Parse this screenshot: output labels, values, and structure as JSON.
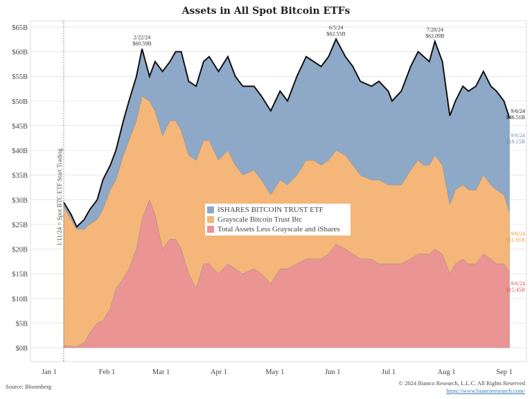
{
  "chart_data": {
    "type": "area",
    "stacked": true,
    "title": "Assets in All Spot Bitcoin ETFs",
    "xlabel": "",
    "ylabel": "",
    "ylim": [
      0,
      65
    ],
    "yticks": [
      "$0B",
      "$5B",
      "$10B",
      "$15B",
      "$20B",
      "$25B",
      "$30B",
      "$35B",
      "$40B",
      "$45B",
      "$50B",
      "$55B",
      "$60B",
      "$65B"
    ],
    "xticks": [
      {
        "date": "2024-01-01",
        "label": "Jan 1"
      },
      {
        "date": "2024-02-01",
        "label": "Feb 1"
      },
      {
        "date": "2024-03-01",
        "label": "Mar 1"
      },
      {
        "date": "2024-04-01",
        "label": "Apr 1"
      },
      {
        "date": "2024-05-01",
        "label": "May 1"
      },
      {
        "date": "2024-06-01",
        "label": "Jun 1"
      },
      {
        "date": "2024-07-01",
        "label": "Jul 1"
      },
      {
        "date": "2024-08-01",
        "label": "Aug 1"
      },
      {
        "date": "2024-09-01",
        "label": "Sep 1"
      }
    ],
    "xlim": [
      "2024-01-01",
      "2024-09-15"
    ],
    "grid": true,
    "legend_position": "center",
    "x": [
      "2024-01-11",
      "2024-01-15",
      "2024-01-18",
      "2024-01-22",
      "2024-01-25",
      "2024-01-29",
      "2024-02-01",
      "2024-02-05",
      "2024-02-08",
      "2024-02-12",
      "2024-02-15",
      "2024-02-19",
      "2024-02-22",
      "2024-02-26",
      "2024-02-29",
      "2024-03-04",
      "2024-03-08",
      "2024-03-11",
      "2024-03-14",
      "2024-03-18",
      "2024-03-22",
      "2024-03-26",
      "2024-03-29",
      "2024-04-03",
      "2024-04-08",
      "2024-04-12",
      "2024-04-16",
      "2024-04-22",
      "2024-04-26",
      "2024-05-01",
      "2024-05-06",
      "2024-05-10",
      "2024-05-15",
      "2024-05-20",
      "2024-05-24",
      "2024-05-28",
      "2024-06-01",
      "2024-06-05",
      "2024-06-10",
      "2024-06-14",
      "2024-06-18",
      "2024-06-24",
      "2024-06-28",
      "2024-07-03",
      "2024-07-05",
      "2024-07-10",
      "2024-07-15",
      "2024-07-19",
      "2024-07-22",
      "2024-07-25",
      "2024-07-28",
      "2024-08-01",
      "2024-08-05",
      "2024-08-08",
      "2024-08-12",
      "2024-08-15",
      "2024-08-19",
      "2024-08-23",
      "2024-08-27",
      "2024-08-30",
      "2024-09-03",
      "2024-09-06"
    ],
    "series": [
      {
        "name": "Total Assets Less Grayscale and iShares",
        "color": "#eb9494",
        "values": [
          0.5,
          0.3,
          0.2,
          1,
          3,
          5,
          5.5,
          8,
          12,
          14,
          16,
          20,
          26,
          30,
          27,
          20,
          22,
          22,
          20,
          15,
          12,
          17,
          17,
          15,
          17,
          16,
          15,
          16,
          15,
          13,
          16,
          16,
          17,
          18,
          18,
          18,
          19,
          21,
          20,
          19,
          18,
          18,
          17,
          17,
          17,
          17,
          18,
          19,
          19,
          19,
          20,
          19,
          15,
          17,
          18,
          17,
          17,
          19,
          18,
          17,
          17,
          15.45
        ]
      },
      {
        "name": "Grayscale Bitcoin Trust Btc",
        "color": "#f4b679",
        "values": [
          28,
          25.7,
          23.8,
          23,
          22,
          21,
          22.5,
          24,
          22,
          25,
          26,
          26,
          25,
          20,
          21,
          23,
          24,
          24,
          24,
          24,
          26,
          25,
          25,
          23,
          23,
          21,
          20,
          20,
          19,
          18,
          18,
          17,
          18,
          20,
          20,
          19,
          19,
          19,
          19,
          18,
          17,
          16,
          17,
          16,
          16,
          16,
          18,
          19,
          18,
          18,
          19,
          18,
          14,
          15,
          15,
          15,
          15,
          16,
          15,
          15,
          14,
          11.91
        ]
      },
      {
        "name": "ISHARES BITCOIN TRUST ETF",
        "color": "#8ea9c7",
        "values": [
          1,
          1,
          0.5,
          2,
          3,
          4,
          6,
          5,
          6,
          7,
          8,
          9,
          9.59,
          5,
          10,
          13,
          12,
          14,
          16,
          15,
          15,
          16,
          17,
          18,
          19,
          18,
          18,
          17,
          17,
          17,
          18,
          17,
          20,
          21,
          20,
          20,
          21,
          22.55,
          20,
          20,
          19,
          19,
          20,
          19,
          17,
          19,
          21,
          22,
          22,
          21,
          23.09,
          21,
          18,
          18,
          20,
          20,
          21,
          21,
          20,
          20,
          19,
          19.15
        ]
      }
    ],
    "legend": [
      "ISHARES BITCOIN TRUST ETF",
      "Grayscale Bitcoin Trust Btc",
      "Total Assets Less Grayscale and iShares"
    ],
    "annotations": {
      "start_line": {
        "date": "2024-01-11",
        "label": "1/11/24 = Spot BTC ETF Start Trading"
      },
      "peaks": [
        {
          "date": "2024-02-22",
          "label": "2/22/24",
          "value_label": "$60.59B"
        },
        {
          "date": "2024-06-05",
          "label": "6/5/24",
          "value_label": "$62.55B"
        },
        {
          "date": "2024-07-28",
          "label": "7/28/24",
          "value_label": "$62.09B"
        }
      ],
      "end_labels": [
        {
          "date": "9/6/24",
          "value_label": "$46.51B",
          "color": "#222222"
        },
        {
          "date": "9/6/24",
          "value_label": "$19.15B",
          "color": "#6f8fb3"
        },
        {
          "date": "9/6/24",
          "value_label": "$11.91B",
          "color": "#e8963f"
        },
        {
          "date": "9/6/24",
          "value_label": "$15.45B",
          "color": "#d9555a"
        }
      ]
    }
  },
  "footer": {
    "source": "Source: Bloomberg",
    "copyright": "© 2024 Bianco Research, L.L.C. All Rights Reserved",
    "url": "https://www.biancoresearch.com/"
  }
}
